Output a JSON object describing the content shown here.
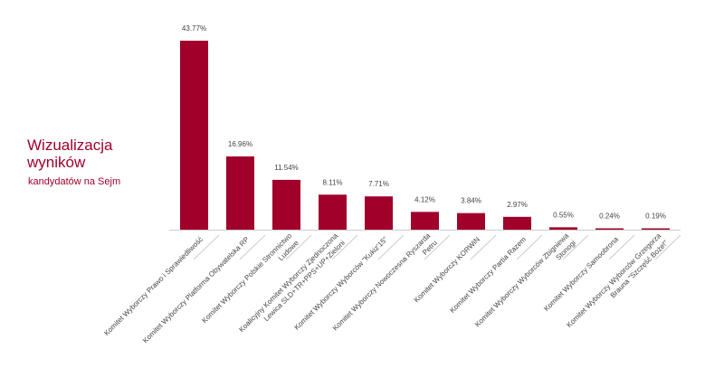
{
  "header": {
    "title": "Wizualizacja wyników",
    "subtitle": "kandydatów na Sejm"
  },
  "colors": {
    "bar": "#a0002a",
    "title": "#a0002a",
    "text": "#444444",
    "divider": "#cccccc"
  },
  "chart_data": {
    "type": "bar",
    "title": "",
    "xlabel": "",
    "ylabel": "",
    "ylim": [
      0,
      45
    ],
    "grid": false,
    "categories": [
      "Komitet Wyborczy Prawo i Sprawiedliwość",
      "Komitet Wyborczy Platforma Obywatelska RP",
      "Komitet Wyborczy Polskie Stronnictwo Ludowe",
      "Koalicyjny Komitet Wyborczy Zjednoczona Lewica SLD+TR+PPS+UP+Zieloni",
      "Komitet Wyborczy Wyborców \"Kukiz'15\"",
      "Komitet Wyborczy Nowoczesna Ryszarda Petru",
      "Komitet Wyborczy KORWiN",
      "Komitet Wyborczy Partia Razem",
      "Komitet Wyborczy Wyborców Zbigniewa Stonogi",
      "Komitet Wyborczy Samoobrona",
      "Komitet Wyborczy Wyborców Grzegorza Brauna \"Szczęść Boże!\""
    ],
    "values": [
      43.77,
      16.96,
      11.54,
      8.11,
      7.71,
      4.12,
      3.84,
      2.97,
      0.55,
      0.24,
      0.19
    ],
    "data_labels": [
      "43.77%",
      "16.96%",
      "11.54%",
      "8.11%",
      "7.71%",
      "4.12%",
      "3.84%",
      "2.97%",
      "0.55%",
      "0.24%",
      "0.19%"
    ],
    "label_lines": [
      [
        "Komitet Wyborczy Prawo i Sprawiedliwość"
      ],
      [
        "Komitet Wyborczy Platforma Obywatelska RP"
      ],
      [
        "Komitet Wyborczy Polskie Stronnictwo",
        "Ludowe"
      ],
      [
        "Koalicyjny Komitet Wyborczy Zjednoczona",
        "Lewica SLD+TR+PPS+UP+Zieloni"
      ],
      [
        "Komitet Wyborczy Wyborców \"Kukiz'15\""
      ],
      [
        "Komitet Wyborczy Nowoczesna Ryszarda",
        "Petru"
      ],
      [
        "Komitet Wyborczy KORWiN"
      ],
      [
        "Komitet Wyborczy Partia Razem"
      ],
      [
        "Komitet Wyborczy Wyborców Zbigniewa",
        "Stonogi"
      ],
      [
        "Komitet Wyborczy Samoobrona"
      ],
      [
        "Komitet Wyborczy Wyborców Grzegorza",
        "Brauna \"Szczęść Boże!\""
      ]
    ]
  }
}
